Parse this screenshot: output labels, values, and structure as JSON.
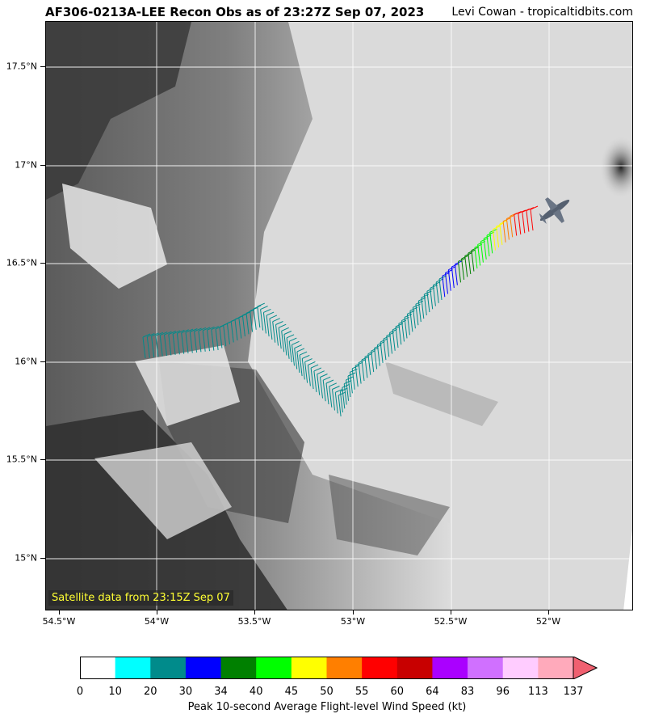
{
  "title": "AF306-0213A-LEE Recon Obs as of 23:27Z Sep 07, 2023",
  "credit": "Levi Cowan - tropicaltidbits.com",
  "satellite_note": "Satellite data from 23:15Z Sep 07",
  "lat_labels": [
    "17.5°N",
    "17°N",
    "16.5°N",
    "16°N",
    "15.5°N",
    "15°N"
  ],
  "lon_labels": [
    "54.5°W",
    "54°W",
    "53.5°W",
    "53°W",
    "52.5°W",
    "52°W"
  ],
  "colorbar": {
    "title": "Peak 10-second Average Flight-level Wind Speed (kt)",
    "ticks": [
      "0",
      "10",
      "20",
      "30",
      "34",
      "40",
      "45",
      "50",
      "55",
      "60",
      "64",
      "83",
      "96",
      "113",
      "137"
    ],
    "colors": [
      "#ffffff",
      "#00ffff",
      "#008b8b",
      "#0000ff",
      "#008000",
      "#00ff00",
      "#ffff00",
      "#ff7f00",
      "#ff0000",
      "#c80000",
      "#aa00ff",
      "#d070ff",
      "#ffccff",
      "#ffaabb"
    ],
    "extend_color": "#f06070"
  },
  "legend_icons": [
    "aircraft-icon"
  ]
}
